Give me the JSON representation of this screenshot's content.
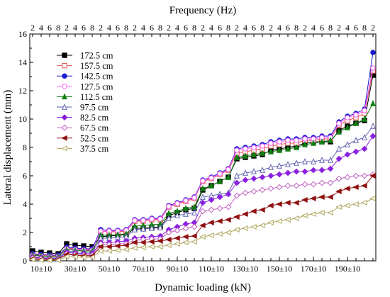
{
  "chart_data": {
    "type": "line",
    "xlabel": "Dynamic loading (kN)",
    "ylabel": "Lateral displacement (mm)",
    "x2label": "Frequency (Hz)",
    "ylim": [
      0,
      16
    ],
    "yticks": [
      0,
      2,
      4,
      6,
      8,
      10,
      12,
      14,
      16
    ],
    "x_tick_labels": [
      "10±10",
      "30±10",
      "50±10",
      "70±10",
      "90±10",
      "110±10",
      "130±10",
      "150±10",
      "170±10",
      "190±10"
    ],
    "top_tick_labels": [
      "2",
      "4",
      "6",
      "8",
      "2",
      "4",
      "6",
      "8",
      "2",
      "4",
      "6",
      "8",
      "2",
      "4",
      "6",
      "8",
      "2",
      "4",
      "6",
      "8",
      "2",
      "4",
      "6",
      "8",
      "2",
      "4",
      "6",
      "8",
      "2",
      "4",
      "6",
      "8",
      "2",
      "4",
      "6",
      "8",
      "2",
      "4",
      "6",
      "8",
      "2"
    ],
    "x": [
      1,
      2,
      3,
      4,
      5,
      6,
      7,
      8,
      9,
      10,
      11,
      12,
      13,
      14,
      15,
      16,
      17,
      18,
      19,
      20,
      21,
      22,
      23,
      24,
      25,
      26,
      27,
      28,
      29,
      30,
      31,
      32,
      33,
      34,
      35,
      36,
      37,
      38,
      39,
      40,
      41
    ],
    "grid": false,
    "legend_position": "upper-left",
    "series": [
      {
        "name": "172.5 cm",
        "color": "#000000",
        "marker": "square-filled",
        "values": [
          0.7,
          0.6,
          0.55,
          0.5,
          1.2,
          1.1,
          1.05,
          1.0,
          1.7,
          1.75,
          1.8,
          1.85,
          2.3,
          2.3,
          2.35,
          2.4,
          3.2,
          3.4,
          3.6,
          3.7,
          5.0,
          5.3,
          5.6,
          5.9,
          7.2,
          7.3,
          7.4,
          7.5,
          7.8,
          7.9,
          8.0,
          8.1,
          8.3,
          8.4,
          8.4,
          8.4,
          9.2,
          9.5,
          9.7,
          9.9,
          13.1
        ]
      },
      {
        "name": "157.5 cm",
        "color": "#e05050",
        "marker": "square-open",
        "values": [
          0.45,
          0.4,
          0.35,
          0.35,
          0.9,
          0.85,
          0.8,
          0.8,
          2.1,
          2.05,
          2.05,
          2.1,
          2.8,
          2.8,
          2.9,
          2.9,
          3.8,
          4.0,
          4.2,
          4.4,
          5.6,
          5.8,
          6.1,
          6.4,
          7.6,
          7.7,
          7.8,
          7.9,
          8.1,
          8.2,
          8.3,
          8.3,
          8.5,
          8.5,
          8.6,
          8.6,
          9.6,
          9.9,
          10.1,
          10.4,
          13.4
        ]
      },
      {
        "name": "142.5 cm",
        "color": "#1a1ad0",
        "marker": "circle-filled",
        "values": [
          0.5,
          0.45,
          0.4,
          0.4,
          0.95,
          0.9,
          0.85,
          0.85,
          2.2,
          2.15,
          2.15,
          2.2,
          2.9,
          2.9,
          3.0,
          3.0,
          3.9,
          4.1,
          4.3,
          4.5,
          5.7,
          5.9,
          6.2,
          6.5,
          7.9,
          8.0,
          8.1,
          8.2,
          8.4,
          8.5,
          8.6,
          8.6,
          8.7,
          8.7,
          8.8,
          8.8,
          9.8,
          10.2,
          10.4,
          10.7,
          14.7
        ]
      },
      {
        "name": "127.5 cm",
        "color": "#ff60ff",
        "marker": "circle-open",
        "values": [
          0.4,
          0.35,
          0.3,
          0.3,
          0.85,
          0.8,
          0.75,
          0.75,
          2.1,
          2.1,
          2.1,
          2.15,
          2.85,
          2.85,
          2.95,
          2.95,
          3.85,
          4.05,
          4.25,
          4.45,
          5.65,
          5.85,
          6.15,
          6.45,
          7.8,
          7.9,
          8.0,
          8.1,
          8.3,
          8.4,
          8.5,
          8.5,
          8.6,
          8.6,
          8.7,
          8.7,
          9.7,
          10.1,
          10.3,
          10.6,
          13.6
        ]
      },
      {
        "name": "112.5 cm",
        "color": "#108010",
        "marker": "triangle-filled",
        "values": [
          0.4,
          0.35,
          0.3,
          0.3,
          0.8,
          0.75,
          0.7,
          0.7,
          1.8,
          1.8,
          1.85,
          1.9,
          2.45,
          2.5,
          2.55,
          2.6,
          3.35,
          3.5,
          3.7,
          3.8,
          5.1,
          5.3,
          5.6,
          5.9,
          7.3,
          7.4,
          7.5,
          7.6,
          7.7,
          7.8,
          7.9,
          8.0,
          8.2,
          8.3,
          8.4,
          8.5,
          9.1,
          9.4,
          9.7,
          10.0,
          11.1
        ]
      },
      {
        "name": "97.5 cm",
        "color": "#6060b0",
        "marker": "triangle-open",
        "values": [
          0.3,
          0.25,
          0.2,
          0.2,
          0.7,
          0.65,
          0.6,
          0.6,
          1.6,
          1.6,
          1.65,
          1.7,
          2.2,
          2.25,
          2.3,
          2.35,
          3.0,
          3.2,
          3.3,
          3.4,
          4.5,
          4.6,
          4.7,
          4.8,
          6.0,
          6.2,
          6.3,
          6.4,
          6.6,
          6.7,
          6.8,
          6.9,
          7.0,
          7.0,
          7.1,
          7.1,
          7.9,
          8.2,
          8.5,
          8.7,
          9.5
        ]
      },
      {
        "name": "82.5 cm",
        "color": "#8a20e0",
        "marker": "diamond-filled",
        "values": [
          0.25,
          0.2,
          0.15,
          0.15,
          0.6,
          0.55,
          0.5,
          0.5,
          1.3,
          1.3,
          1.35,
          1.4,
          1.6,
          1.65,
          1.7,
          1.75,
          2.2,
          2.4,
          2.6,
          2.7,
          4.1,
          4.3,
          4.5,
          4.7,
          5.5,
          5.7,
          5.8,
          5.9,
          6.0,
          6.1,
          6.2,
          6.3,
          6.3,
          6.4,
          6.4,
          6.5,
          7.2,
          7.5,
          7.7,
          7.9,
          8.8
        ]
      },
      {
        "name": "67.5 cm",
        "color": "#c060c0",
        "marker": "diamond-open",
        "values": [
          0.2,
          0.15,
          0.1,
          0.1,
          0.5,
          0.45,
          0.4,
          0.4,
          1.2,
          1.15,
          1.2,
          1.2,
          1.45,
          1.5,
          1.55,
          1.55,
          2.0,
          2.15,
          2.3,
          2.4,
          3.5,
          3.6,
          3.7,
          3.8,
          4.6,
          4.8,
          4.9,
          5.0,
          5.1,
          5.2,
          5.3,
          5.3,
          5.4,
          5.4,
          5.5,
          5.5,
          5.8,
          5.9,
          6.0,
          6.0,
          6.1
        ]
      },
      {
        "name": "52.5 cm",
        "color": "#901010",
        "marker": "triangle-left-filled",
        "values": [
          0.15,
          0.1,
          0.1,
          0.1,
          0.45,
          0.4,
          0.35,
          0.35,
          1.0,
          1.0,
          1.05,
          1.1,
          1.3,
          1.3,
          1.35,
          1.4,
          1.5,
          1.6,
          1.7,
          1.75,
          2.5,
          2.7,
          2.8,
          2.9,
          3.1,
          3.3,
          3.5,
          3.6,
          3.9,
          4.0,
          4.1,
          4.1,
          4.3,
          4.4,
          4.5,
          4.5,
          4.9,
          5.1,
          5.2,
          5.3,
          6.0
        ]
      },
      {
        "name": "37.5 cm",
        "color": "#b0a860",
        "marker": "triangle-left-open",
        "values": [
          0.1,
          0.05,
          0.05,
          0.05,
          0.3,
          0.28,
          0.25,
          0.25,
          0.7,
          0.7,
          0.75,
          0.8,
          0.9,
          0.95,
          1.0,
          1.0,
          1.1,
          1.2,
          1.3,
          1.35,
          1.7,
          1.8,
          1.9,
          2.0,
          2.2,
          2.3,
          2.4,
          2.5,
          2.7,
          2.8,
          2.9,
          3.0,
          3.2,
          3.3,
          3.4,
          3.4,
          3.8,
          3.9,
          4.0,
          4.1,
          4.4
        ]
      }
    ]
  }
}
